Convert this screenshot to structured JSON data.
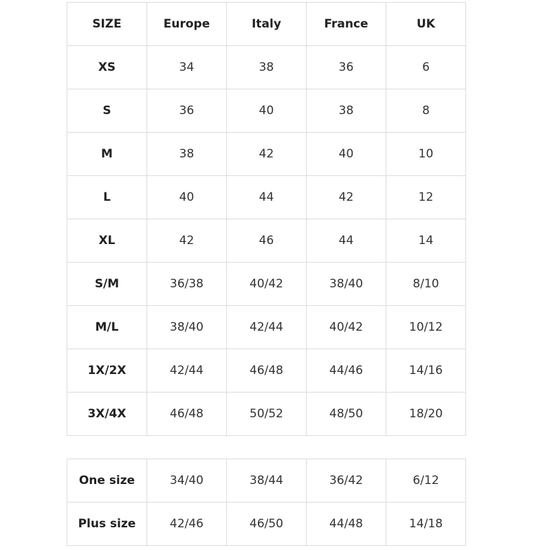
{
  "table": {
    "header": [
      "SIZE",
      "Europe",
      "Italy",
      "France",
      "UK"
    ],
    "rows": [
      [
        "XS",
        "34",
        "38",
        "36",
        "6"
      ],
      [
        "S",
        "36",
        "40",
        "38",
        "8"
      ],
      [
        "M",
        "38",
        "42",
        "40",
        "10"
      ],
      [
        "L",
        "40",
        "44",
        "42",
        "12"
      ],
      [
        "XL",
        "42",
        "46",
        "44",
        "14"
      ],
      [
        "S/M",
        "36/38",
        "40/42",
        "38/40",
        "8/10"
      ],
      [
        "M/L",
        "38/40",
        "42/44",
        "40/42",
        "10/12"
      ],
      [
        "1X/2X",
        "42/44",
        "46/48",
        "44/46",
        "14/16"
      ],
      [
        "3X/4X",
        "46/48",
        "50/52",
        "48/50",
        "18/20"
      ]
    ]
  },
  "table2": {
    "rows": [
      [
        "One size",
        "34/40",
        "38/44",
        "36/42",
        "6/12"
      ],
      [
        "Plus size",
        "42/46",
        "46/50",
        "44/48",
        "14/18"
      ]
    ]
  }
}
